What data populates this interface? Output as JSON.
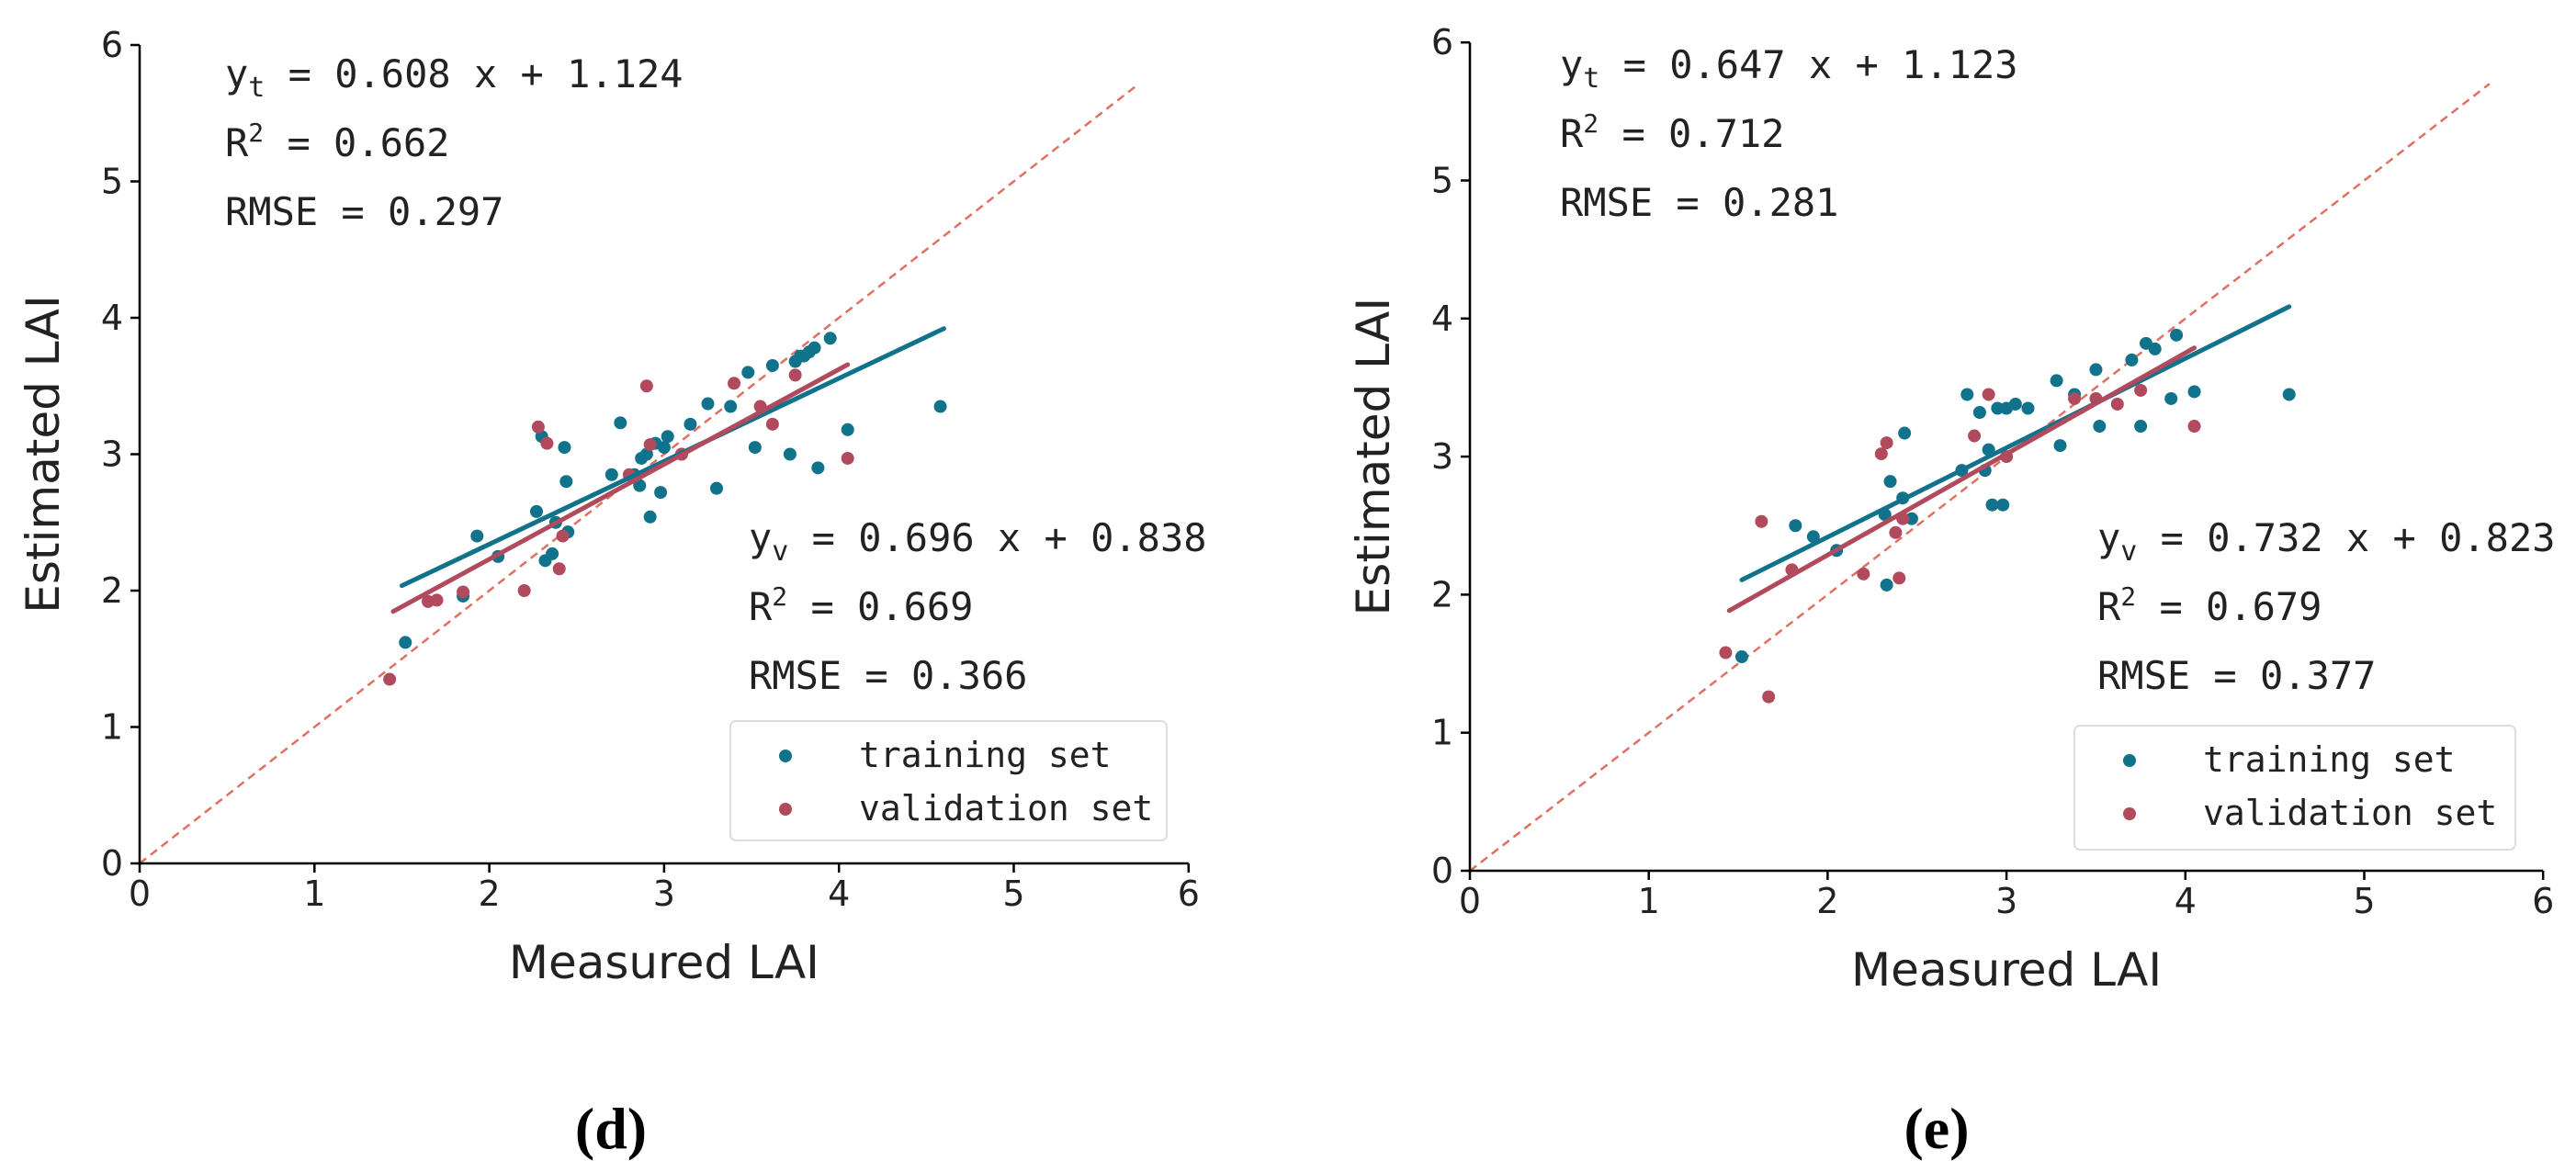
{
  "chart_data": [
    {
      "panel": "d",
      "type": "scatter",
      "caption": "(d)",
      "xlabel": "Measured LAI",
      "ylabel": "Estimated LAI",
      "xlim": [
        0,
        6
      ],
      "ylim": [
        0,
        6
      ],
      "xticks": [
        "0",
        "1",
        "2",
        "3",
        "4",
        "5",
        "6"
      ],
      "yticks": [
        "0",
        "1",
        "2",
        "3",
        "4",
        "5",
        "6"
      ],
      "grid": false,
      "legend_position": "bottom-right",
      "reference_line": {
        "name": "1:1 line",
        "x": [
          0,
          5.7
        ],
        "y": [
          0,
          5.7
        ],
        "style": "dashed"
      },
      "colors": {
        "training": "#11728c",
        "validation": "#b14a5c",
        "reference": "#e07060"
      },
      "training_stats": {
        "eq_label": "y",
        "eq_sub": "t",
        "eq_rhs": " = 0.608 x + 1.124",
        "r2_label": "R",
        "r2_sup": "2",
        "r2_rhs": " = 0.662",
        "rmse_text": "RMSE = 0.297"
      },
      "validation_stats": {
        "eq_label": "y",
        "eq_sub": "v",
        "eq_rhs": " = 0.696 x + 0.838",
        "r2_label": "R",
        "r2_sup": "2",
        "r2_rhs": " = 0.669",
        "rmse_text": "RMSE = 0.366"
      },
      "series": [
        {
          "name": "training set",
          "fit": {
            "slope": 0.608,
            "intercept": 1.124,
            "x_range": [
              1.5,
              4.6
            ]
          },
          "points": [
            [
              1.52,
              1.62
            ],
            [
              1.85,
              1.96
            ],
            [
              1.93,
              2.4
            ],
            [
              2.05,
              2.25
            ],
            [
              2.27,
              2.58
            ],
            [
              2.3,
              3.13
            ],
            [
              2.32,
              2.22
            ],
            [
              2.36,
              2.27
            ],
            [
              2.38,
              2.5
            ],
            [
              2.43,
              3.05
            ],
            [
              2.44,
              2.8
            ],
            [
              2.45,
              2.43
            ],
            [
              2.7,
              2.85
            ],
            [
              2.75,
              3.23
            ],
            [
              2.83,
              2.85
            ],
            [
              2.86,
              2.77
            ],
            [
              2.87,
              2.97
            ],
            [
              2.9,
              3.0
            ],
            [
              2.92,
              2.54
            ],
            [
              2.95,
              3.08
            ],
            [
              2.98,
              2.72
            ],
            [
              3.0,
              3.05
            ],
            [
              3.02,
              3.13
            ],
            [
              3.1,
              3.0
            ],
            [
              3.15,
              3.22
            ],
            [
              3.25,
              3.37
            ],
            [
              3.3,
              2.75
            ],
            [
              3.38,
              3.35
            ],
            [
              3.48,
              3.6
            ],
            [
              3.52,
              3.05
            ],
            [
              3.62,
              3.65
            ],
            [
              3.72,
              3.0
            ],
            [
              3.75,
              3.68
            ],
            [
              3.78,
              3.72
            ],
            [
              3.8,
              3.72
            ],
            [
              3.83,
              3.75
            ],
            [
              3.86,
              3.78
            ],
            [
              3.88,
              2.9
            ],
            [
              3.95,
              3.85
            ],
            [
              4.05,
              3.18
            ],
            [
              4.58,
              3.35
            ]
          ]
        },
        {
          "name": "validation set",
          "fit": {
            "slope": 0.696,
            "intercept": 0.838,
            "x_range": [
              1.45,
              4.05
            ]
          },
          "points": [
            [
              1.43,
              1.35
            ],
            [
              1.65,
              1.92
            ],
            [
              1.7,
              1.93
            ],
            [
              1.85,
              1.99
            ],
            [
              2.2,
              2.0
            ],
            [
              2.28,
              3.2
            ],
            [
              2.33,
              3.08
            ],
            [
              2.4,
              2.16
            ],
            [
              2.42,
              2.4
            ],
            [
              2.8,
              2.85
            ],
            [
              2.9,
              3.5
            ],
            [
              2.92,
              3.07
            ],
            [
              3.1,
              3.0
            ],
            [
              3.4,
              3.52
            ],
            [
              3.55,
              3.35
            ],
            [
              3.62,
              3.22
            ],
            [
              3.75,
              3.58
            ],
            [
              4.05,
              2.97
            ]
          ]
        }
      ]
    },
    {
      "panel": "e",
      "type": "scatter",
      "caption": "(e)",
      "xlabel": "Measured LAI",
      "ylabel": "Estimated LAI",
      "xlim": [
        0,
        6
      ],
      "ylim": [
        0,
        6
      ],
      "xticks": [
        "0",
        "1",
        "2",
        "3",
        "4",
        "5",
        "6"
      ],
      "yticks": [
        "0",
        "1",
        "2",
        "3",
        "4",
        "5",
        "6"
      ],
      "grid": false,
      "legend_position": "bottom-right",
      "reference_line": {
        "name": "1:1 line",
        "x": [
          0,
          5.7
        ],
        "y": [
          0,
          5.7
        ],
        "style": "dashed"
      },
      "colors": {
        "training": "#11728c",
        "validation": "#b14a5c",
        "reference": "#e07060"
      },
      "training_stats": {
        "eq_label": "y",
        "eq_sub": "t",
        "eq_rhs": " = 0.647 x + 1.123",
        "r2_label": "R",
        "r2_sup": "2",
        "r2_rhs": " = 0.712",
        "rmse_text": "RMSE = 0.281"
      },
      "validation_stats": {
        "eq_label": "y",
        "eq_sub": "v",
        "eq_rhs": " = 0.732 x + 0.823",
        "r2_label": "R",
        "r2_sup": "2",
        "r2_rhs": " = 0.679",
        "rmse_text": "RMSE = 0.377"
      },
      "series": [
        {
          "name": "training set",
          "fit": {
            "slope": 0.647,
            "intercept": 1.123,
            "x_range": [
              1.52,
              4.58
            ]
          },
          "points": [
            [
              1.52,
              1.55
            ],
            [
              1.82,
              2.5
            ],
            [
              1.92,
              2.42
            ],
            [
              2.05,
              2.32
            ],
            [
              2.32,
              2.58
            ],
            [
              2.33,
              2.07
            ],
            [
              2.35,
              2.82
            ],
            [
              2.42,
              2.7
            ],
            [
              2.43,
              3.17
            ],
            [
              2.47,
              2.55
            ],
            [
              2.75,
              2.9
            ],
            [
              2.78,
              3.45
            ],
            [
              2.85,
              3.32
            ],
            [
              2.88,
              2.9
            ],
            [
              2.9,
              3.05
            ],
            [
              2.92,
              2.65
            ],
            [
              2.95,
              3.35
            ],
            [
              2.98,
              2.65
            ],
            [
              3.0,
              3.35
            ],
            [
              3.05,
              3.38
            ],
            [
              3.12,
              3.35
            ],
            [
              3.28,
              3.55
            ],
            [
              3.3,
              3.08
            ],
            [
              3.38,
              3.45
            ],
            [
              3.5,
              3.63
            ],
            [
              3.52,
              3.22
            ],
            [
              3.7,
              3.7
            ],
            [
              3.75,
              3.22
            ],
            [
              3.78,
              3.82
            ],
            [
              3.83,
              3.78
            ],
            [
              3.92,
              3.42
            ],
            [
              3.95,
              3.88
            ],
            [
              4.05,
              3.47
            ],
            [
              4.58,
              3.45
            ]
          ]
        },
        {
          "name": "validation set",
          "fit": {
            "slope": 0.732,
            "intercept": 0.823,
            "x_range": [
              1.45,
              4.05
            ]
          },
          "points": [
            [
              1.43,
              1.58
            ],
            [
              1.63,
              2.53
            ],
            [
              1.67,
              1.26
            ],
            [
              1.8,
              2.18
            ],
            [
              2.2,
              2.15
            ],
            [
              2.3,
              3.02
            ],
            [
              2.33,
              3.1
            ],
            [
              2.38,
              2.45
            ],
            [
              2.4,
              2.12
            ],
            [
              2.42,
              2.55
            ],
            [
              2.82,
              3.15
            ],
            [
              2.9,
              3.45
            ],
            [
              3.0,
              3.0
            ],
            [
              3.38,
              3.42
            ],
            [
              3.5,
              3.42
            ],
            [
              3.62,
              3.38
            ],
            [
              3.75,
              3.48
            ],
            [
              4.05,
              3.22
            ]
          ]
        }
      ]
    }
  ]
}
